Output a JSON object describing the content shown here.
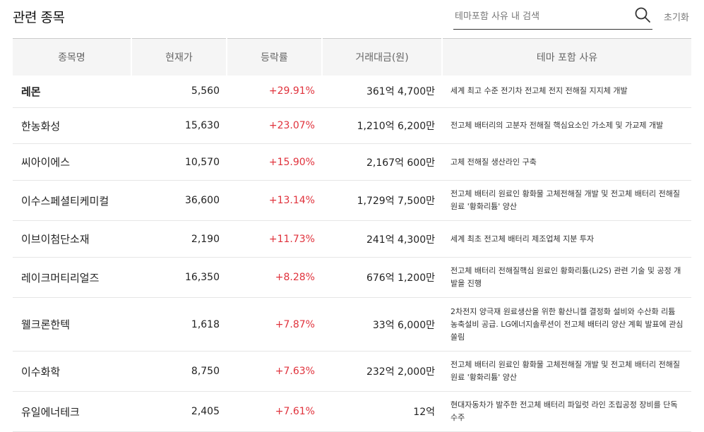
{
  "header": {
    "title": "관련 종목",
    "search_placeholder": "테마포함 사유 내 검색",
    "reset_label": "초기화"
  },
  "table": {
    "columns": [
      "종목명",
      "현재가",
      "등락률",
      "거래대금(원)",
      "테마 포함 사유"
    ],
    "rows": [
      {
        "name": "레몬",
        "price": "5,560",
        "rate": "+29.91%",
        "amount": "361억 4,700만",
        "reason": "세계 최고 수준 전기차 전고체 전지 전해질 지지체 개발"
      },
      {
        "name": "한농화성",
        "price": "15,630",
        "rate": "+23.07%",
        "amount": "1,210억 6,200만",
        "reason": "전고체 배터리의 고분자 전해질 핵심요소인 가소제 및 가교제 개발"
      },
      {
        "name": "씨아이에스",
        "price": "10,570",
        "rate": "+15.90%",
        "amount": "2,167억 600만",
        "reason": "고체 전해질 생산라인 구축"
      },
      {
        "name": "이수스페셜티케미컬",
        "price": "36,600",
        "rate": "+13.14%",
        "amount": "1,729억 7,500만",
        "reason": "전고체 배터리 원료인 황화물 고체전해질 개발 및 전고체 배터리 전해질 원료 '황화리튬' 양산"
      },
      {
        "name": "이브이첨단소재",
        "price": "2,190",
        "rate": "+11.73%",
        "amount": "241억 4,300만",
        "reason": "세계 최초 전고체 배터리 제조업체 지분 투자"
      },
      {
        "name": "레이크머티리얼즈",
        "price": "16,350",
        "rate": "+8.28%",
        "amount": "676억 1,200만",
        "reason": "전고체 배터리 전해질핵심 원료인 황화리튬(Li2S) 관련 기술 및 공정 개발을 진행"
      },
      {
        "name": "웰크론한텍",
        "price": "1,618",
        "rate": "+7.87%",
        "amount": "33억 6,000만",
        "reason": "2차전지 양극재 원료생산을 위한 황산니켈 결정화 설비와 수산화 리튬 농축설비 공급. LG에너지솔루션이 전고체 배터리 양산 계획 발표에 관심쏠림"
      },
      {
        "name": "이수화학",
        "price": "8,750",
        "rate": "+7.63%",
        "amount": "232억 2,000만",
        "reason": "전고체 배터리 원료인 황화물 고체전해질 개발 및 전고체 배터리 전해질 원료 '황화리튬' 양산"
      },
      {
        "name": "유일에너테크",
        "price": "2,405",
        "rate": "+7.61%",
        "amount": "12억",
        "reason": "현대자동차가 발주한 전고체 배터리 파일럿 라인 조립공정 장비를 단독 수주"
      }
    ]
  },
  "colors": {
    "rise": "#e0323c",
    "header_bg": "#f5f5f5"
  }
}
